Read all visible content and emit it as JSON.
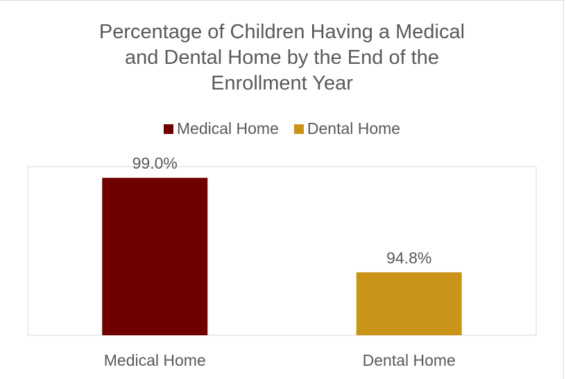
{
  "chart_data": {
    "type": "bar",
    "title_lines": [
      "Percentage of Children Having a Medical",
      "and Dental Home by the End of the",
      "Enrollment Year"
    ],
    "categories": [
      "Medical Home",
      "Dental Home"
    ],
    "values": [
      99.0,
      94.8
    ],
    "data_labels": [
      "99.0%",
      "94.8%"
    ],
    "colors": [
      "#700000",
      "#C99418"
    ],
    "legend": [
      {
        "label": "Medical Home",
        "color": "#700000"
      },
      {
        "label": "Dental Home",
        "color": "#C99418"
      }
    ],
    "legend_position": "top",
    "ylim": [
      92,
      99.5
    ],
    "grid": false,
    "xlabel": "",
    "ylabel": ""
  }
}
